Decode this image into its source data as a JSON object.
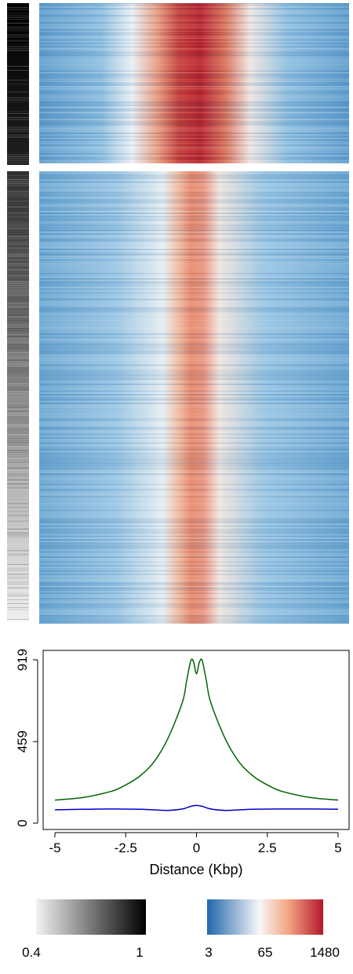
{
  "chart_data": [
    {
      "type": "heatmap",
      "name": "signal-heatmap",
      "clusters": [
        {
          "id": "cluster-1",
          "rows": "top",
          "signal_peak": "high"
        },
        {
          "id": "cluster-2",
          "rows": "bottom",
          "signal_peak": "moderate"
        }
      ],
      "x_range_kbp": [
        -5,
        5
      ],
      "colormap": [
        "#2166ac",
        "#f7f7f7",
        "#b2182b"
      ],
      "side_annotation_colormap": [
        "#ffffff",
        "#000000"
      ]
    },
    {
      "type": "line",
      "name": "average-profile",
      "xlabel": "Distance (Kbp)",
      "xlim": [
        -5,
        5
      ],
      "ylim": [
        0,
        919
      ],
      "x_ticks": [
        "-5",
        "-2.5",
        "0",
        "2.5",
        "5"
      ],
      "y_ticks": [
        "0",
        "459",
        "919"
      ],
      "series": [
        {
          "color": "#006400",
          "x": [
            -5,
            -4,
            -3,
            -2.5,
            -2,
            -1.5,
            -1,
            -0.5,
            -0.35,
            -0.2,
            -0.1,
            0,
            0.1,
            0.2,
            0.35,
            0.5,
            1,
            1.5,
            2,
            2.5,
            3,
            4,
            5
          ],
          "y": [
            130,
            145,
            180,
            215,
            265,
            345,
            480,
            680,
            800,
            915,
            905,
            840,
            905,
            915,
            800,
            680,
            480,
            345,
            265,
            215,
            180,
            145,
            130
          ]
        },
        {
          "color": "#0000cd",
          "x": [
            -5,
            -4,
            -3,
            -2,
            -1.5,
            -1,
            -0.5,
            -0.2,
            0,
            0.2,
            0.5,
            1,
            1.5,
            2,
            3,
            4,
            5
          ],
          "y": [
            75,
            78,
            80,
            78,
            75,
            72,
            80,
            95,
            100,
            95,
            80,
            72,
            75,
            78,
            80,
            80,
            78
          ]
        }
      ]
    }
  ],
  "legends": [
    {
      "name": "annotation-scale",
      "colors": [
        "#f2f2f2",
        "#000000"
      ],
      "labels": [
        "0.4",
        "1"
      ]
    },
    {
      "name": "signal-scale",
      "colors": [
        "#2166ac",
        "#f7f7f7",
        "#f4a582",
        "#b2182b"
      ],
      "labels": [
        "3",
        "65",
        "1480"
      ]
    }
  ]
}
